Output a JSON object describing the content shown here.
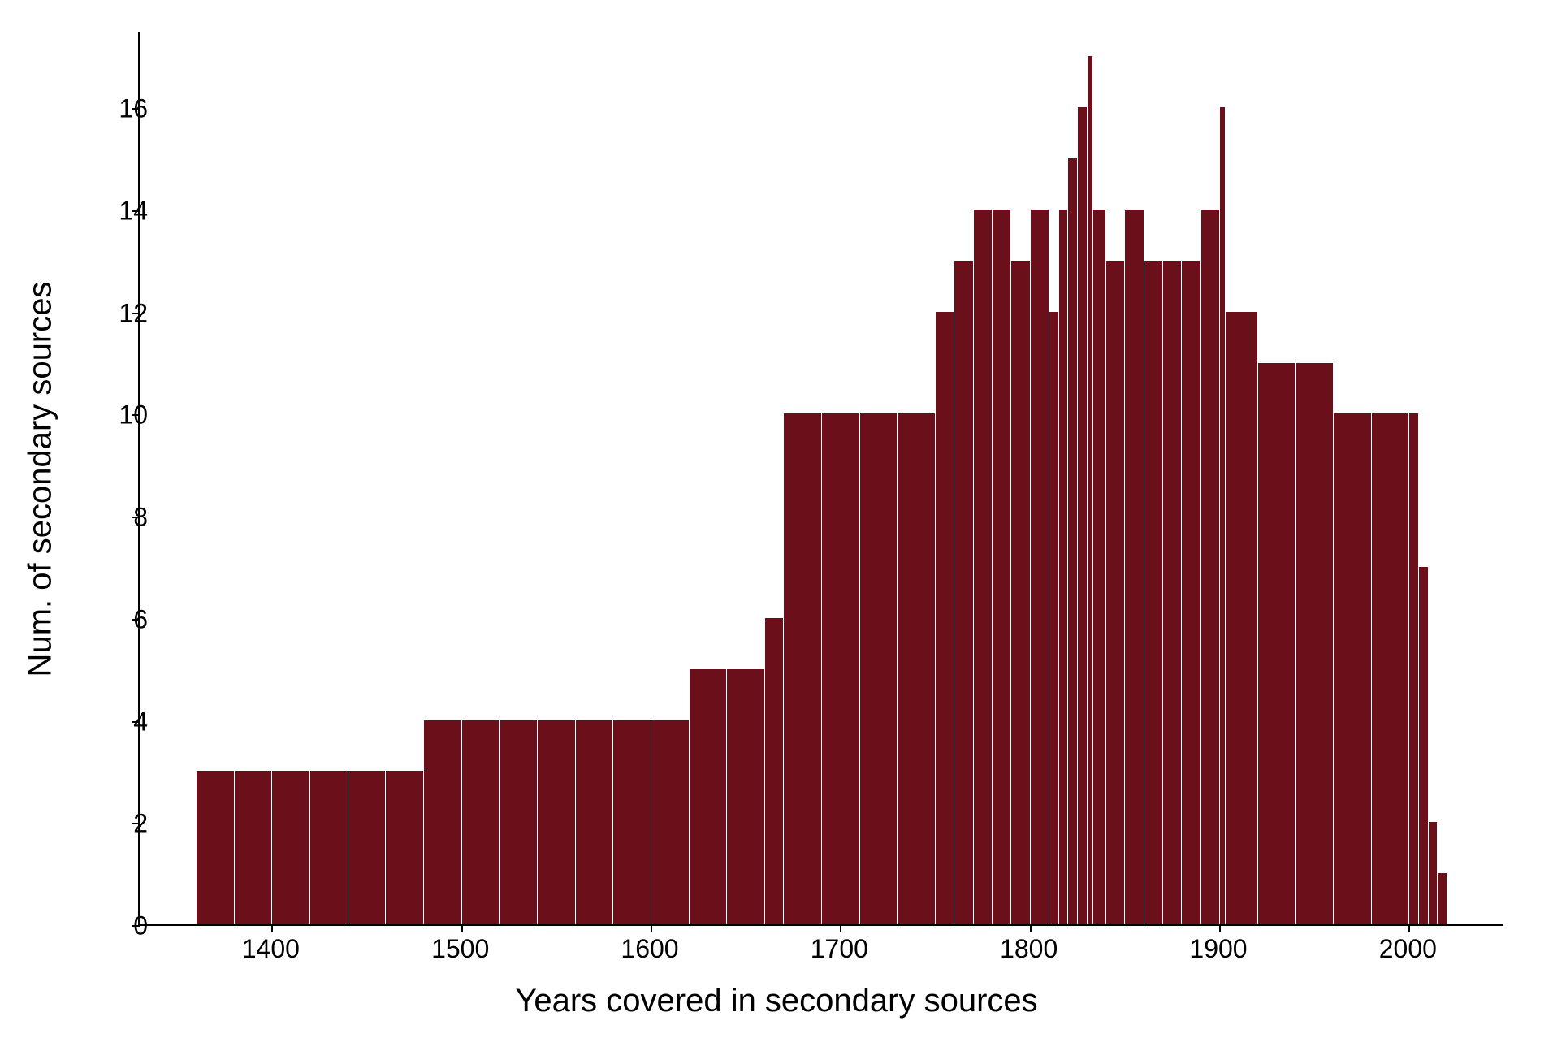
{
  "histogram": {
    "type": "histogram",
    "xlabel": "Years covered in secondary sources",
    "ylabel": "Num. of secondary sources",
    "label_fontsize": 40,
    "tick_fontsize": 32,
    "background_color": "#ffffff",
    "bar_color": "#6b0f1a",
    "bar_edge_color": "#ffffff",
    "axis_color": "#000000",
    "xlim": [
      1330,
      2050
    ],
    "ylim": [
      0,
      17.5
    ],
    "xtick_values": [
      1400,
      1500,
      1600,
      1700,
      1800,
      1900,
      2000
    ],
    "xtick_labels": [
      "1400",
      "1500",
      "1600",
      "1700",
      "1800",
      "1900",
      "2000"
    ],
    "ytick_values": [
      0,
      2,
      4,
      6,
      8,
      10,
      12,
      14,
      16
    ],
    "ytick_labels": [
      "0",
      "2",
      "4",
      "6",
      "8",
      "10",
      "12",
      "14",
      "16"
    ],
    "bins": [
      {
        "start": 1360,
        "end": 1380,
        "count": 3
      },
      {
        "start": 1380,
        "end": 1400,
        "count": 3
      },
      {
        "start": 1400,
        "end": 1420,
        "count": 3
      },
      {
        "start": 1420,
        "end": 1440,
        "count": 3
      },
      {
        "start": 1440,
        "end": 1460,
        "count": 3
      },
      {
        "start": 1460,
        "end": 1480,
        "count": 3
      },
      {
        "start": 1480,
        "end": 1500,
        "count": 4
      },
      {
        "start": 1500,
        "end": 1520,
        "count": 4
      },
      {
        "start": 1520,
        "end": 1540,
        "count": 4
      },
      {
        "start": 1540,
        "end": 1560,
        "count": 4
      },
      {
        "start": 1560,
        "end": 1580,
        "count": 4
      },
      {
        "start": 1580,
        "end": 1600,
        "count": 4
      },
      {
        "start": 1600,
        "end": 1620,
        "count": 4
      },
      {
        "start": 1620,
        "end": 1640,
        "count": 5
      },
      {
        "start": 1640,
        "end": 1660,
        "count": 5
      },
      {
        "start": 1660,
        "end": 1670,
        "count": 6
      },
      {
        "start": 1670,
        "end": 1690,
        "count": 10
      },
      {
        "start": 1690,
        "end": 1710,
        "count": 10
      },
      {
        "start": 1710,
        "end": 1730,
        "count": 10
      },
      {
        "start": 1730,
        "end": 1750,
        "count": 10
      },
      {
        "start": 1750,
        "end": 1760,
        "count": 12
      },
      {
        "start": 1760,
        "end": 1770,
        "count": 13
      },
      {
        "start": 1770,
        "end": 1780,
        "count": 14
      },
      {
        "start": 1780,
        "end": 1790,
        "count": 14
      },
      {
        "start": 1790,
        "end": 1800,
        "count": 13
      },
      {
        "start": 1800,
        "end": 1810,
        "count": 14
      },
      {
        "start": 1810,
        "end": 1815,
        "count": 12
      },
      {
        "start": 1815,
        "end": 1820,
        "count": 14
      },
      {
        "start": 1820,
        "end": 1825,
        "count": 15
      },
      {
        "start": 1825,
        "end": 1830,
        "count": 16
      },
      {
        "start": 1830,
        "end": 1833,
        "count": 17
      },
      {
        "start": 1833,
        "end": 1840,
        "count": 14
      },
      {
        "start": 1840,
        "end": 1850,
        "count": 13
      },
      {
        "start": 1850,
        "end": 1860,
        "count": 14
      },
      {
        "start": 1860,
        "end": 1870,
        "count": 13
      },
      {
        "start": 1870,
        "end": 1880,
        "count": 13
      },
      {
        "start": 1880,
        "end": 1890,
        "count": 13
      },
      {
        "start": 1890,
        "end": 1900,
        "count": 14
      },
      {
        "start": 1900,
        "end": 1903,
        "count": 16
      },
      {
        "start": 1903,
        "end": 1920,
        "count": 12
      },
      {
        "start": 1920,
        "end": 1940,
        "count": 11
      },
      {
        "start": 1940,
        "end": 1960,
        "count": 11
      },
      {
        "start": 1960,
        "end": 1980,
        "count": 10
      },
      {
        "start": 1980,
        "end": 2000,
        "count": 10
      },
      {
        "start": 2000,
        "end": 2005,
        "count": 10
      },
      {
        "start": 2005,
        "end": 2010,
        "count": 7
      },
      {
        "start": 2010,
        "end": 2015,
        "count": 2
      },
      {
        "start": 2015,
        "end": 2020,
        "count": 1
      }
    ]
  }
}
